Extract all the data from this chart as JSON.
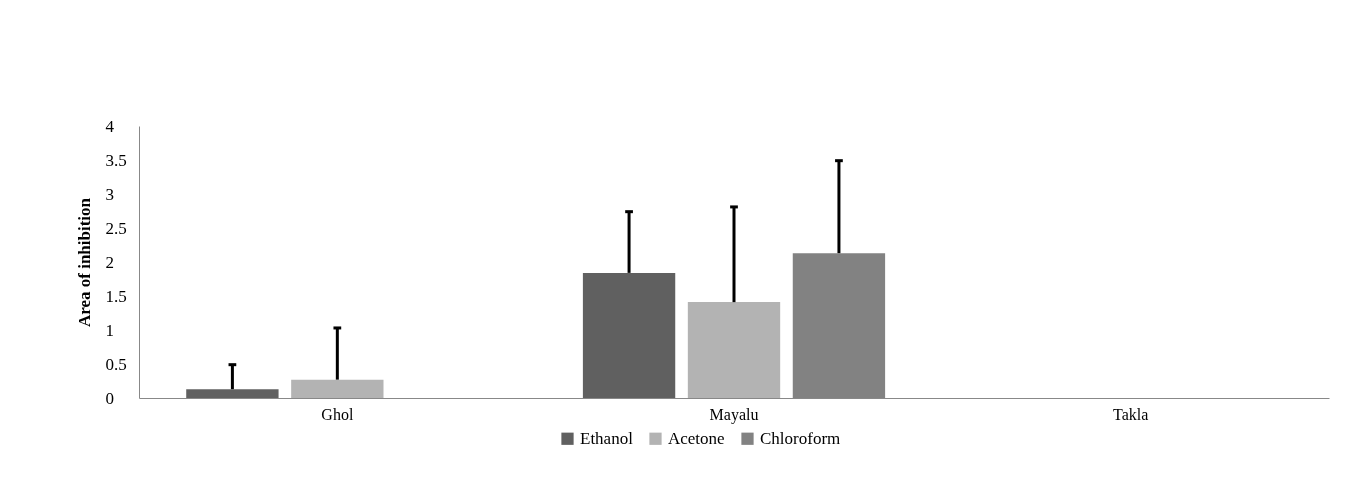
{
  "chart_data": {
    "type": "bar",
    "ylabel": "Area of inhibition",
    "categories": [
      "Ghol",
      "Mayalu",
      "Takla"
    ],
    "series": [
      {
        "name": "Ethanol",
        "color": "#606060",
        "values": [
          0.13,
          1.84,
          0
        ],
        "errors": [
          0.36,
          0.9,
          null
        ]
      },
      {
        "name": "Acetone",
        "color": "#b3b3b3",
        "values": [
          0.27,
          1.41,
          0
        ],
        "errors": [
          0.76,
          1.4,
          null
        ]
      },
      {
        "name": "Chloroform",
        "color": "#828282",
        "values": [
          0,
          2.13,
          0
        ],
        "errors": [
          null,
          1.36,
          null
        ]
      }
    ],
    "ylim": [
      0,
      4
    ],
    "yticks": [
      0,
      0.5,
      1,
      1.5,
      2,
      2.5,
      3,
      3.5,
      4
    ],
    "grid": false,
    "legend": "bottom"
  }
}
